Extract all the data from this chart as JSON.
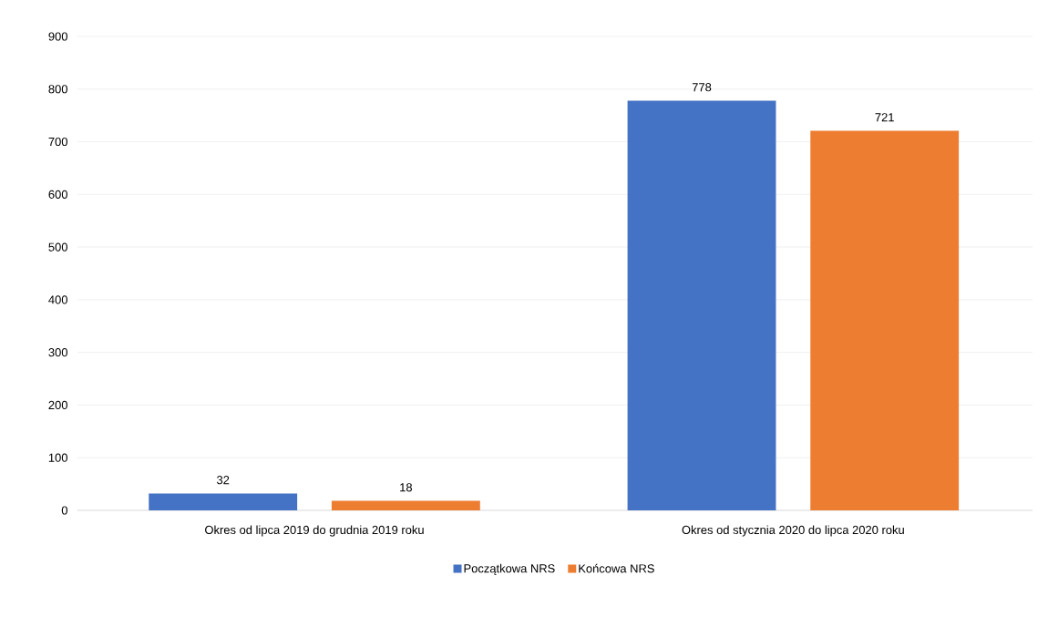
{
  "chart_data": {
    "type": "bar",
    "categories": [
      "Okres od lipca 2019 do grudnia 2019 roku",
      "Okres od stycznia 2020 do lipca 2020 roku"
    ],
    "series": [
      {
        "name": "Początkowa NRS",
        "color": "#4472c4",
        "values": [
          32,
          778
        ]
      },
      {
        "name": "Końcowa NRS",
        "color": "#ed7d31",
        "values": [
          18,
          721
        ]
      }
    ],
    "ylim": [
      0,
      900
    ],
    "yticks": [
      0,
      100,
      200,
      300,
      400,
      500,
      600,
      700,
      800,
      900
    ],
    "grid": "y",
    "legend": "bottom",
    "data_labels": true
  }
}
